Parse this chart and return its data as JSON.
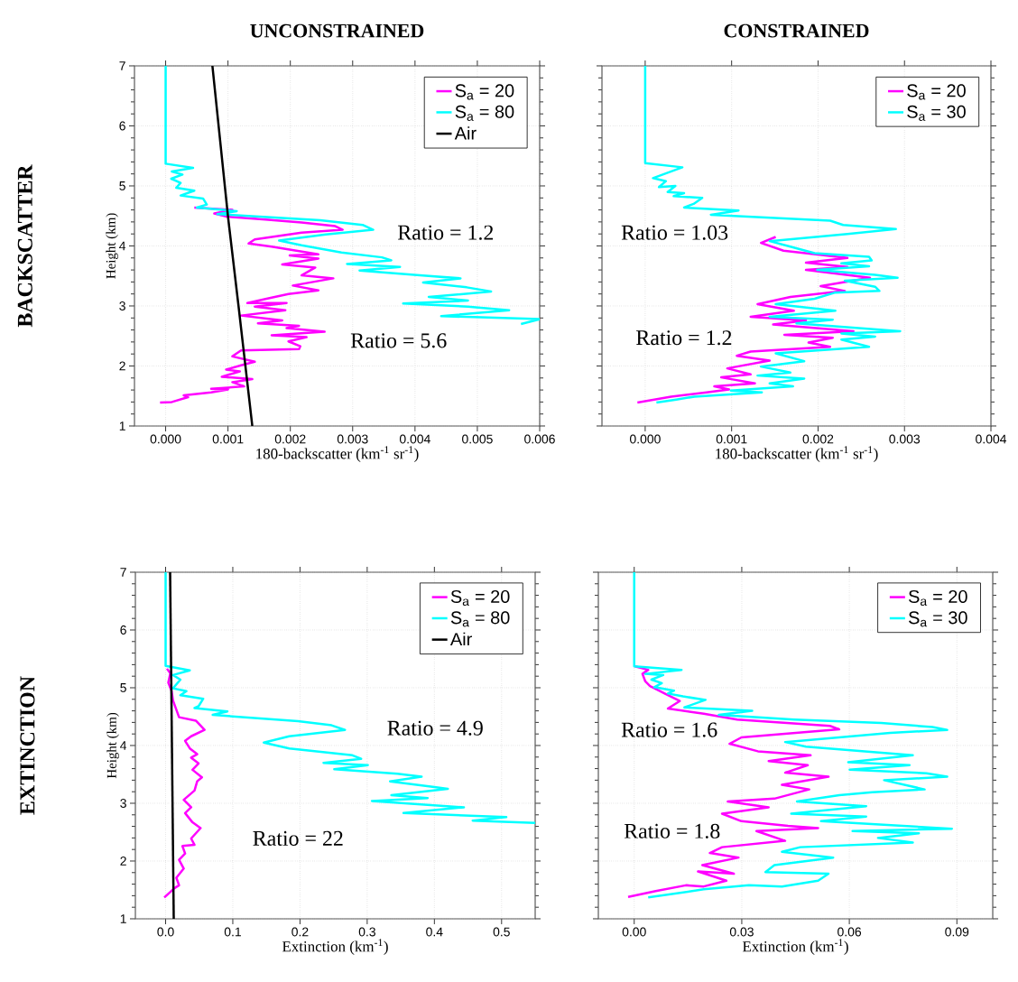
{
  "chart_data": [
    {
      "type": "line",
      "title": "UNCONSTRAINED",
      "xlabel": "180-backscatter (km$^{-1}$ sr$^{-1}$)",
      "ylabel": "Height (km)",
      "xlim": [
        -0.0005,
        0.006
      ],
      "ylim": [
        1,
        7
      ],
      "xticks": [
        {
          "value": 0,
          "label": "0.000"
        },
        {
          "value": 0.001,
          "label": "0.001"
        },
        {
          "value": 0.002,
          "label": "0.002"
        },
        {
          "value": 0.003,
          "label": "0.003"
        },
        {
          "value": 0.004,
          "label": "0.004"
        },
        {
          "value": 0.005,
          "label": "0.005"
        },
        {
          "value": 0.006,
          "label": "0.006"
        }
      ],
      "yticks": [
        1,
        2,
        3,
        4,
        5,
        6,
        7
      ],
      "grid": true,
      "legend": "top right",
      "annotations": [
        "Ratio = 1.2",
        "Ratio = 5.6",
        "BACKSCATTER"
      ],
      "series": [
        {
          "name": "S$_{a}$ = 20",
          "color": "#ff00ff",
          "x": [
            -9e-05,
            0.0001,
            0.00036,
            0.00029,
            0.00073,
            0.001,
            0.00073,
            0.00126,
            0.00107,
            0.00139,
            0.0009,
            0.00119,
            0.00097,
            0.00121,
            0.00143,
            0.00107,
            0.00121,
            0.00214,
            0.00216,
            0.00197,
            0.00226,
            0.0017,
            0.00255,
            0.00194,
            0.00214,
            0.00148,
            0.00187,
            0.00121,
            0.00192,
            0.00143,
            0.00194,
            0.00131,
            0.0017,
            0.00197,
            0.00245,
            0.00204,
            0.00269,
            0.00218,
            0.0024,
            0.00187,
            0.00245,
            0.00199,
            0.00245,
            0.0017,
            0.00133,
            0.00143,
            0.00218,
            0.00284,
            0.00272,
            0.00218,
            0.0016,
            0.00097,
            0.00078,
            0.00107,
            0.00046
          ],
          "values": [
            1.39,
            1.4,
            1.48,
            1.51,
            1.56,
            1.61,
            1.62,
            1.66,
            1.73,
            1.78,
            1.82,
            1.91,
            1.94,
            2.01,
            2.07,
            2.16,
            2.26,
            2.28,
            2.33,
            2.41,
            2.48,
            2.51,
            2.57,
            2.63,
            2.67,
            2.71,
            2.76,
            2.84,
            2.93,
            2.99,
            3.05,
            3.05,
            3.14,
            3.2,
            3.26,
            3.34,
            3.46,
            3.51,
            3.64,
            3.69,
            3.79,
            3.84,
            3.86,
            3.99,
            4.04,
            4.11,
            4.22,
            4.27,
            4.33,
            4.39,
            4.44,
            4.49,
            4.54,
            4.6,
            4.64
          ]
        },
        {
          "name": "S$_{a}$ = 80",
          "color": "#00ffff",
          "x": [
            0,
            0,
            0.00044,
            0.0001,
            0.00027,
            9e-05,
            0.00024,
            0.00017,
            0.00046,
            0.00024,
            0.0006,
            0.00066,
            0.0005,
            0.00114,
            0.00083,
            0.00248,
            0.00316,
            0.00333,
            0.00257,
            0.00182,
            0.00218,
            0.00282,
            0.00347,
            0.00362,
            0.00291,
            0.00376,
            0.00311,
            0.00408,
            0.00473,
            0.00413,
            0.00483,
            0.00522,
            0.00422,
            0.00485,
            0.00381,
            0.00485,
            0.00551,
            0.00442,
            0.006,
            0.0057
          ],
          "values": [
            7,
            5.37,
            5.3,
            5.24,
            5.19,
            5.12,
            5.05,
            4.97,
            4.92,
            4.84,
            4.79,
            4.69,
            4.64,
            4.58,
            4.53,
            4.43,
            4.35,
            4.27,
            4.19,
            4.09,
            4.01,
            3.89,
            3.81,
            3.76,
            3.7,
            3.65,
            3.59,
            3.51,
            3.46,
            3.39,
            3.31,
            3.24,
            3.15,
            3.09,
            3.04,
            2.99,
            2.93,
            2.83,
            2.78,
            2.7
          ]
        },
        {
          "name": "Air",
          "color": "#000000",
          "x": [
            0.00075,
            0.001,
            0.00117,
            0.00139
          ],
          "values": [
            7,
            4.49,
            2.99,
            1
          ]
        }
      ]
    },
    {
      "type": "line",
      "title": "CONSTRAINED",
      "xlabel": "180-backscatter (km$^{-1}$ sr$^{-1}$)",
      "xlim": [
        -0.0005,
        0.004
      ],
      "ylim": [
        1,
        7
      ],
      "xticks": [
        {
          "value": 0,
          "label": "0.000"
        },
        {
          "value": 0.001,
          "label": "0.001"
        },
        {
          "value": 0.002,
          "label": "0.002"
        },
        {
          "value": 0.003,
          "label": "0.003"
        },
        {
          "value": 0.004,
          "label": "0.004"
        }
      ],
      "yticks": [
        1,
        2,
        3,
        4,
        5,
        6,
        7
      ],
      "tick_labels": "x",
      "grid": true,
      "legend": "top right",
      "annotations": [
        "Ratio = 1.03",
        "Ratio = 1.2"
      ],
      "series": [
        {
          "name": "S$_{a}$ = 20",
          "color": "#ff00ff",
          "x": [
            -9e-05,
            0.0003,
            0.00071,
            0.00097,
            0.0008,
            0.00127,
            0.00088,
            0.00122,
            0.00095,
            0.00144,
            0.00106,
            0.00122,
            0.00214,
            0.00189,
            0.00217,
            0.00161,
            0.00241,
            0.00148,
            0.00186,
            0.00122,
            0.00172,
            0.0013,
            0.00168,
            0.00231,
            0.00203,
            0.0026,
            0.00186,
            0.00234,
            0.00186,
            0.00234,
            0.0016,
            0.00134,
            0.00151
          ],
          "values": [
            1.39,
            1.49,
            1.56,
            1.61,
            1.66,
            1.71,
            1.81,
            1.86,
            1.96,
            2.09,
            2.17,
            2.24,
            2.32,
            2.39,
            2.47,
            2.52,
            2.58,
            2.69,
            2.76,
            2.82,
            2.92,
            3.03,
            3.15,
            3.25,
            3.33,
            3.47,
            3.6,
            3.65,
            3.72,
            3.8,
            3.92,
            4.05,
            4.15
          ]
        },
        {
          "name": "S$_{a}$ = 30",
          "color": "#00ffff",
          "x": [
            0,
            0,
            0.00043,
            9e-05,
            0.00024,
            0.00016,
            0.00035,
            0.00026,
            0.00045,
            0.00033,
            0.00066,
            0.00056,
            0.00045,
            0.00108,
            0.00076,
            0.00214,
            0.00229,
            0.0029,
            0.00234,
            0.00144,
            0.00165,
            0.00196,
            0.00259,
            0.00262,
            0.00227,
            0.00259,
            0.00199,
            0.00266,
            0.00292,
            0.00231,
            0.00266,
            0.00271,
            0.00219,
            0.00196,
            0.00151,
            0.0022,
            0.00144,
            0.00217,
            0.00175,
            0.00295,
            0.00227,
            0.00266,
            0.00227,
            0.00259,
            0.00151,
            0.00184,
            0.00134,
            0.00168,
            0.0013,
            0.00184,
            0.00144,
            0.00171,
            0.00099,
            0.00135,
            0.00057,
            0.00036,
            0.00013
          ],
          "values": [
            7,
            5.38,
            5.31,
            5.13,
            5.08,
            4.98,
            5,
            4.9,
            4.88,
            4.83,
            4.8,
            4.7,
            4.64,
            4.59,
            4.52,
            4.42,
            4.35,
            4.28,
            4.2,
            4.08,
            4,
            3.88,
            3.82,
            3.76,
            3.71,
            3.66,
            3.6,
            3.52,
            3.47,
            3.42,
            3.32,
            3.25,
            3.22,
            3.12,
            3.03,
            2.92,
            2.82,
            2.77,
            2.71,
            2.58,
            2.54,
            2.49,
            2.44,
            2.32,
            2.21,
            2.08,
            1.99,
            1.89,
            1.84,
            1.79,
            1.71,
            1.66,
            1.59,
            1.56,
            1.49,
            1.44,
            1.39
          ]
        }
      ]
    },
    {
      "type": "line",
      "xlabel": "Extinction (km$^{-1}$)",
      "ylabel": "Height (km)",
      "xlim": [
        -0.045,
        0.55
      ],
      "ylim": [
        1,
        7
      ],
      "xticks": [
        {
          "value": 0,
          "label": "0.0"
        },
        0.1,
        0.2,
        0.3,
        0.4,
        0.5
      ],
      "yticks": [
        1,
        2,
        3,
        4,
        5,
        6,
        7
      ],
      "grid": true,
      "legend": "top right",
      "annotations": [
        "Ratio = 4.9",
        "Ratio = 22",
        "EXTINCTION"
      ],
      "series": [
        {
          "name": "S$_{a}$ = 20",
          "color": "#ff00ff",
          "x": [
            -0.002,
            0.013,
            0.02,
            0.016,
            0.027,
            0.02,
            0.029,
            0.025,
            0.043,
            0.038,
            0.052,
            0.04,
            0.029,
            0.038,
            0.027,
            0.043,
            0.047,
            0.054,
            0.04,
            0.049,
            0.038,
            0.047,
            0.036,
            0.029,
            0.038,
            0.058,
            0.045,
            0.02,
            0.016,
            0.011,
            0.009,
            0.004,
            0.007,
            0.002
          ],
          "values": [
            1.37,
            1.53,
            1.58,
            1.71,
            1.87,
            2.02,
            2.13,
            2.26,
            2.28,
            2.39,
            2.57,
            2.67,
            2.83,
            2.93,
            3.06,
            3.22,
            3.38,
            3.45,
            3.58,
            3.69,
            3.79,
            3.85,
            3.95,
            4.08,
            4.16,
            4.27,
            4.43,
            4.49,
            4.62,
            4.78,
            4.94,
            5.09,
            5.25,
            5.33
          ]
        },
        {
          "name": "S$_{a}$ = 80",
          "color": "#00ffff",
          "x": [
            0,
            0,
            0.036,
            0.011,
            0.022,
            0.011,
            0.031,
            0.022,
            0.056,
            0.049,
            0.043,
            0.092,
            0.07,
            0.197,
            0.247,
            0.267,
            0.184,
            0.146,
            0.184,
            0.278,
            0.291,
            0.235,
            0.301,
            0.251,
            0.345,
            0.381,
            0.334,
            0.4,
            0.42,
            0.336,
            0.39,
            0.307,
            0.444,
            0.354,
            0.507,
            0.457,
            0.55
          ],
          "values": [
            7,
            5.38,
            5.3,
            5.22,
            5.14,
            4.99,
            4.94,
            4.87,
            4.81,
            4.68,
            4.65,
            4.59,
            4.53,
            4.42,
            4.35,
            4.27,
            4.16,
            4.05,
            3.95,
            3.83,
            3.77,
            3.7,
            3.66,
            3.59,
            3.51,
            3.46,
            3.38,
            3.28,
            3.25,
            3.14,
            3.09,
            3.04,
            2.93,
            2.83,
            2.76,
            2.7,
            2.66
          ]
        },
        {
          "name": "Air",
          "color": "#000000",
          "x": [
            0.0067,
            0.0121
          ],
          "values": [
            7,
            1
          ]
        }
      ]
    },
    {
      "type": "line",
      "xlabel": "Extinction (km$^{-1}$)",
      "xlim": [
        -0.01,
        0.1
      ],
      "ylim": [
        1,
        7
      ],
      "xticks": [
        {
          "value": 0,
          "label": "0.00"
        },
        0.03,
        0.06,
        0.09
      ],
      "yticks": [
        1,
        2,
        3,
        4,
        5,
        6,
        7
      ],
      "tick_labels": "x",
      "grid": true,
      "legend": "top right",
      "annotations": [
        "Ratio = 1.6",
        "Ratio = 1.8"
      ],
      "series": [
        {
          "name": "S$_{a}$ = 20",
          "color": "#ff00ff",
          "x": [
            -0.0017,
            0.006,
            0.0144,
            0.0194,
            0.0257,
            0.0178,
            0.0278,
            0.019,
            0.0291,
            0.0211,
            0.0245,
            0.0421,
            0.0341,
            0.0513,
            0.0429,
            0.0299,
            0.0245,
            0.0375,
            0.0261,
            0.0391,
            0.0488,
            0.0412,
            0.0542,
            0.0421,
            0.0484,
            0.0375,
            0.0492,
            0.0345,
            0.0266,
            0.0299,
            0.0572,
            0.0546,
            0.0287,
            0.0194,
            0.0094,
            0.0127,
            0.0085,
            0.0044,
            0.0031,
            0.0023,
            0.0039,
            0.0002
          ],
          "values": [
            1.38,
            1.48,
            1.58,
            1.56,
            1.66,
            1.82,
            1.78,
            1.93,
            2.06,
            2.14,
            2.24,
            2.35,
            2.52,
            2.57,
            2.61,
            2.69,
            2.82,
            2.93,
            3.03,
            3.08,
            3.24,
            3.32,
            3.46,
            3.53,
            3.66,
            3.73,
            3.83,
            3.9,
            4.03,
            4.14,
            4.28,
            4.34,
            4.45,
            4.55,
            4.64,
            4.77,
            4.9,
            5.03,
            5.11,
            5.24,
            5.31,
            5.37
          ]
        },
        {
          "name": "S$_{a}$ = 30",
          "color": "#00ffff",
          "x": [
            0,
            0,
            0.0132,
            0.0031,
            0.0081,
            0.0048,
            0.0077,
            0.0056,
            0.0111,
            0.0094,
            0.0136,
            0.0199,
            0.014,
            0.0329,
            0.0236,
            0.0446,
            0.0689,
            0.0832,
            0.0873,
            0.0714,
            0.0421,
            0.0479,
            0.0643,
            0.0777,
            0.0597,
            0.0768,
            0.0601,
            0.0815,
            0.0873,
            0.0697,
            0.081,
            0.0664,
            0.0572,
            0.0454,
            0.0647,
            0.0438,
            0.0647,
            0.0521,
            0.0886,
            0.0609,
            0.0794,
            0.068,
            0.0777,
            0.0463,
            0.0412,
            0.0555,
            0.0391,
            0.0366,
            0.0542,
            0.0513,
            0.0412,
            0.032,
            0.0194,
            0.0039
          ],
          "values": [
            7,
            5.37,
            5.31,
            5.24,
            5.22,
            5.14,
            5.08,
            5.01,
            4.95,
            4.9,
            4.85,
            4.79,
            4.66,
            4.6,
            4.53,
            4.45,
            4.39,
            4.32,
            4.27,
            4.22,
            4.06,
            3.98,
            3.9,
            3.83,
            3.71,
            3.66,
            3.58,
            3.52,
            3.46,
            3.4,
            3.24,
            3.19,
            3.14,
            3.03,
            2.95,
            2.82,
            2.77,
            2.69,
            2.56,
            2.52,
            2.48,
            2.4,
            2.32,
            2.24,
            2.16,
            2.06,
            1.93,
            1.81,
            1.78,
            1.66,
            1.56,
            1.58,
            1.51,
            1.37
          ]
        }
      ]
    }
  ]
}
